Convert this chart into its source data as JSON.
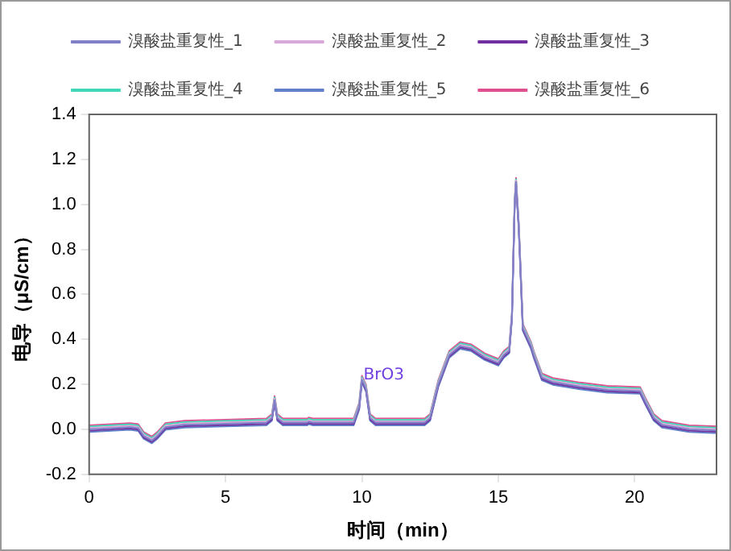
{
  "chart_data": {
    "type": "line",
    "xlabel": "时间（min）",
    "ylabel": "电导（μS/cm）",
    "x": [
      0,
      1.5,
      1.8,
      2.0,
      2.3,
      2.5,
      2.8,
      3.5,
      5,
      6.5,
      6.7,
      6.8,
      6.9,
      7.1,
      8,
      8.05,
      8.2,
      9.7,
      9.9,
      10.0,
      10.15,
      10.3,
      10.5,
      12.3,
      12.5,
      12.8,
      13.2,
      13.6,
      14.0,
      14.5,
      15.0,
      15.2,
      15.4,
      15.5,
      15.6,
      15.65,
      15.75,
      15.9,
      16.2,
      16.3,
      16.6,
      17,
      18,
      19,
      20.2,
      20.4,
      20.7,
      21,
      22,
      23
    ],
    "series": [
      {
        "name": "溴酸盐重复性_1",
        "color": "#8080c8",
        "values": [
          0,
          0.01,
          0.005,
          -0.03,
          -0.05,
          -0.03,
          0.01,
          0.02,
          0.025,
          0.03,
          0.05,
          0.13,
          0.05,
          0.03,
          0.03,
          0.035,
          0.03,
          0.03,
          0.1,
          0.22,
          0.18,
          0.05,
          0.03,
          0.03,
          0.05,
          0.2,
          0.33,
          0.37,
          0.36,
          0.32,
          0.295,
          0.33,
          0.35,
          0.5,
          1.0,
          1.1,
          0.9,
          0.45,
          0.37,
          0.33,
          0.23,
          0.21,
          0.19,
          0.175,
          0.17,
          0.12,
          0.05,
          0.02,
          0,
          -0.005
        ]
      },
      {
        "name": "溴酸盐重复性_2",
        "color": "#d8a8d8",
        "values": [
          0.006,
          0.016,
          0.011,
          -0.024,
          -0.044,
          -0.024,
          0.016,
          0.026,
          0.031,
          0.036,
          0.056,
          0.136,
          0.056,
          0.036,
          0.036,
          0.041,
          0.036,
          0.036,
          0.106,
          0.226,
          0.186,
          0.056,
          0.036,
          0.036,
          0.056,
          0.206,
          0.336,
          0.376,
          0.366,
          0.326,
          0.301,
          0.336,
          0.356,
          0.506,
          1.006,
          1.106,
          0.906,
          0.456,
          0.376,
          0.336,
          0.236,
          0.216,
          0.196,
          0.181,
          0.176,
          0.126,
          0.056,
          0.026,
          0.006,
          0.001
        ]
      },
      {
        "name": "溴酸盐重复性_3",
        "color": "#7030a0",
        "values": [
          -0.006,
          0.004,
          -0.001,
          -0.036,
          -0.056,
          -0.036,
          0.004,
          0.014,
          0.019,
          0.024,
          0.044,
          0.124,
          0.044,
          0.024,
          0.024,
          0.029,
          0.024,
          0.024,
          0.094,
          0.214,
          0.174,
          0.044,
          0.024,
          0.024,
          0.044,
          0.194,
          0.324,
          0.364,
          0.354,
          0.314,
          0.289,
          0.324,
          0.344,
          0.494,
          0.994,
          1.094,
          0.894,
          0.444,
          0.364,
          0.324,
          0.224,
          0.204,
          0.184,
          0.169,
          0.164,
          0.114,
          0.044,
          0.014,
          -0.006,
          -0.011
        ]
      },
      {
        "name": "溴酸盐重复性_4",
        "color": "#40d8b8",
        "values": [
          0.012,
          0.022,
          0.017,
          -0.018,
          -0.038,
          -0.018,
          0.022,
          0.032,
          0.037,
          0.042,
          0.062,
          0.142,
          0.062,
          0.042,
          0.042,
          0.047,
          0.042,
          0.042,
          0.112,
          0.232,
          0.192,
          0.062,
          0.042,
          0.042,
          0.062,
          0.212,
          0.342,
          0.382,
          0.372,
          0.332,
          0.307,
          0.342,
          0.362,
          0.512,
          1.012,
          1.112,
          0.912,
          0.462,
          0.382,
          0.342,
          0.242,
          0.222,
          0.202,
          0.187,
          0.182,
          0.132,
          0.062,
          0.032,
          0.012,
          0.007
        ]
      },
      {
        "name": "溴酸盐重复性_5",
        "color": "#6080c8",
        "values": [
          -0.012,
          -0.002,
          -0.007,
          -0.042,
          -0.062,
          -0.042,
          -0.002,
          0.008,
          0.013,
          0.018,
          0.038,
          0.118,
          0.038,
          0.018,
          0.018,
          0.023,
          0.018,
          0.018,
          0.088,
          0.208,
          0.168,
          0.038,
          0.018,
          0.018,
          0.038,
          0.188,
          0.318,
          0.358,
          0.348,
          0.308,
          0.283,
          0.318,
          0.338,
          0.488,
          0.988,
          1.088,
          0.888,
          0.438,
          0.358,
          0.318,
          0.218,
          0.198,
          0.178,
          0.163,
          0.158,
          0.108,
          0.038,
          0.008,
          -0.012,
          -0.017
        ]
      },
      {
        "name": "溴酸盐重复性_6",
        "color": "#e05090",
        "values": [
          0.018,
          0.028,
          0.023,
          -0.012,
          -0.032,
          -0.012,
          0.028,
          0.038,
          0.043,
          0.048,
          0.068,
          0.148,
          0.068,
          0.048,
          0.048,
          0.053,
          0.048,
          0.048,
          0.118,
          0.238,
          0.198,
          0.068,
          0.048,
          0.048,
          0.068,
          0.218,
          0.348,
          0.388,
          0.378,
          0.338,
          0.313,
          0.348,
          0.368,
          0.518,
          1.018,
          1.118,
          0.918,
          0.468,
          0.388,
          0.348,
          0.248,
          0.228,
          0.208,
          0.193,
          0.188,
          0.138,
          0.068,
          0.038,
          0.018,
          0.013
        ]
      }
    ],
    "xlim": [
      0,
      23
    ],
    "xticks": [
      0,
      5,
      10,
      15,
      20
    ],
    "ylim": [
      -0.2,
      1.4
    ],
    "yticks": [
      {
        "value": -0.2,
        "label": "-0.2"
      },
      {
        "value": 0,
        "label": "0.0"
      },
      {
        "value": 0.2,
        "label": "0.2"
      },
      {
        "value": 0.4,
        "label": "0.4"
      },
      {
        "value": 0.6,
        "label": "0.6"
      },
      {
        "value": 0.8,
        "label": "0.8"
      },
      {
        "value": 1,
        "label": "1.0"
      },
      {
        "value": 1.2,
        "label": "1.2"
      },
      {
        "value": 1.4,
        "label": "1.4"
      }
    ],
    "annotations": [
      {
        "text": "BrO3",
        "x": 10,
        "y": 0.22
      }
    ],
    "grid": false,
    "legend": "top",
    "marker": "none",
    "line_style": "solid"
  }
}
